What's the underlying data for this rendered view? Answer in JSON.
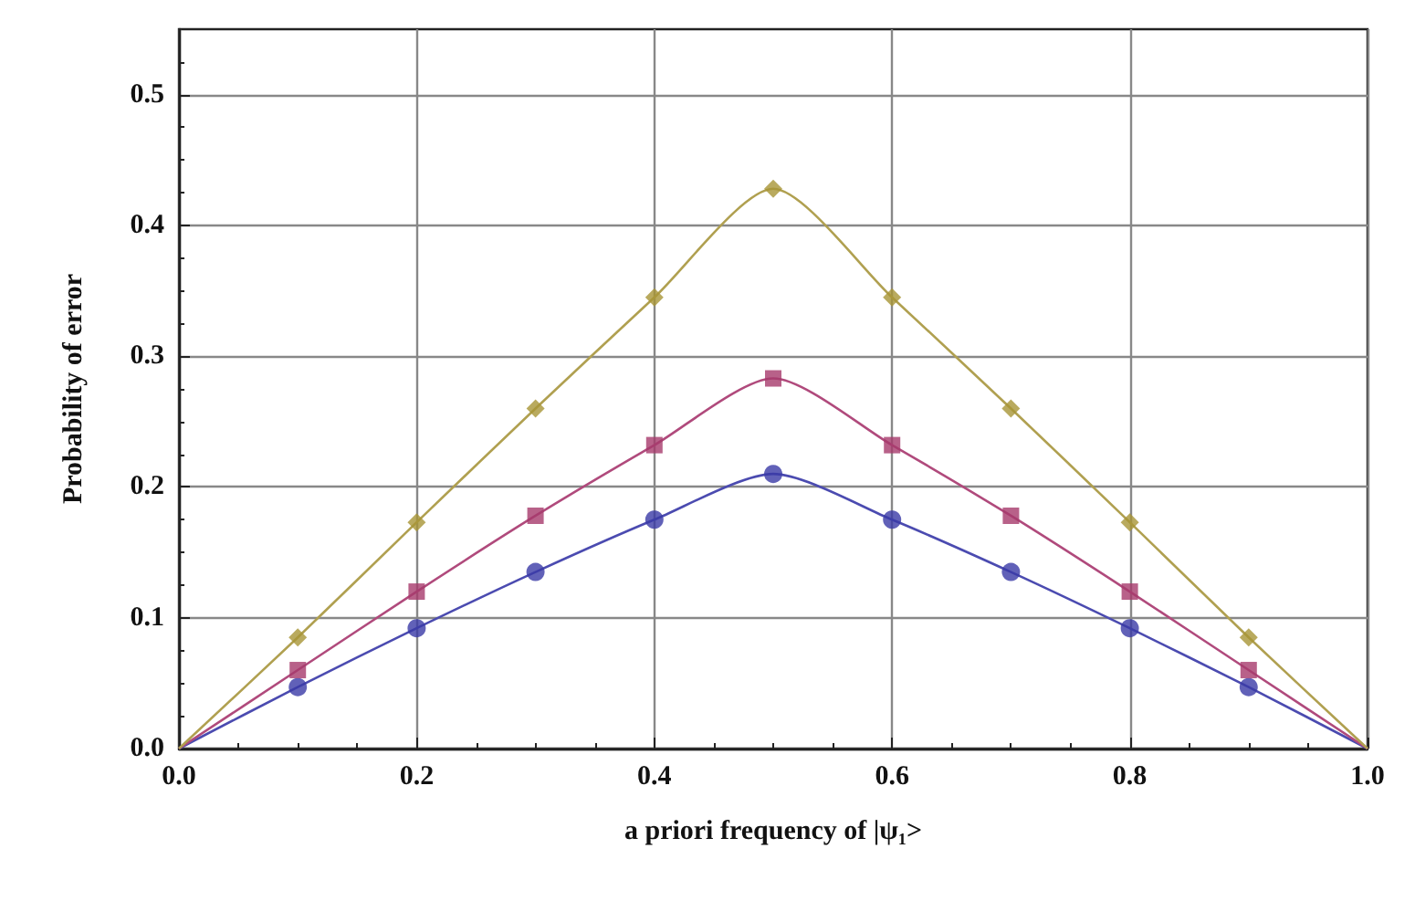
{
  "chart_data": {
    "type": "line",
    "xlabel": "a priori frequency of |ψ₁>",
    "ylabel": "Probability of error",
    "xlim": [
      0,
      1
    ],
    "xticks": [
      {
        "value": 0,
        "label": "0.0"
      },
      0.2,
      0.4,
      0.6,
      0.8,
      {
        "value": 1,
        "label": "1.0"
      }
    ],
    "ylim": [
      0,
      0.55
    ],
    "yticks": [
      {
        "value": 0,
        "label": "0.0"
      },
      0.1,
      0.2,
      0.3,
      0.4,
      0.5
    ],
    "grid": true,
    "series": [
      {
        "marker": "none",
        "color": "#4b4bb0",
        "x": [
          0,
          0.1,
          0.2,
          0.3,
          0.4,
          0.5,
          0.6,
          0.7,
          0.8,
          0.9,
          1
        ],
        "values": [
          0,
          0.047,
          0.092,
          0.135,
          0.175,
          0.21,
          0.175,
          0.135,
          0.092,
          0.047,
          0
        ]
      },
      {
        "marker": "none",
        "color": "#b04a7c",
        "x": [
          0,
          0.1,
          0.2,
          0.3,
          0.4,
          0.5,
          0.6,
          0.7,
          0.8,
          0.9,
          1
        ],
        "values": [
          0,
          0.06,
          0.12,
          0.178,
          0.232,
          0.283,
          0.232,
          0.178,
          0.12,
          0.06,
          0
        ]
      },
      {
        "marker": "none",
        "color": "#b0a050",
        "x": [
          0,
          0.1,
          0.2,
          0.3,
          0.4,
          0.5,
          0.6,
          0.7,
          0.8,
          0.9,
          1
        ],
        "values": [
          0,
          0.085,
          0.173,
          0.26,
          0.345,
          0.428,
          0.345,
          0.26,
          0.173,
          0.085,
          0
        ]
      },
      {
        "type": "scatter",
        "marker": "circle",
        "color": "#3a3aa6",
        "x": [
          0.1,
          0.2,
          0.3,
          0.4,
          0.5,
          0.6,
          0.7,
          0.8,
          0.9
        ],
        "values": [
          0.047,
          0.092,
          0.135,
          0.175,
          0.21,
          0.175,
          0.135,
          0.092,
          0.047
        ]
      },
      {
        "type": "scatter",
        "marker": "square",
        "color": "#a63a6c",
        "x": [
          0.1,
          0.2,
          0.3,
          0.4,
          0.5,
          0.6,
          0.7,
          0.8,
          0.9
        ],
        "values": [
          0.06,
          0.12,
          0.178,
          0.232,
          0.283,
          0.232,
          0.178,
          0.12,
          0.06
        ]
      },
      {
        "type": "scatter",
        "marker": "diamond",
        "color": "#a89536",
        "x": [
          0.1,
          0.2,
          0.3,
          0.4,
          0.5,
          0.6,
          0.7,
          0.8,
          0.9
        ],
        "values": [
          0.085,
          0.173,
          0.26,
          0.345,
          0.428,
          0.345,
          0.26,
          0.173,
          0.085
        ]
      }
    ]
  }
}
